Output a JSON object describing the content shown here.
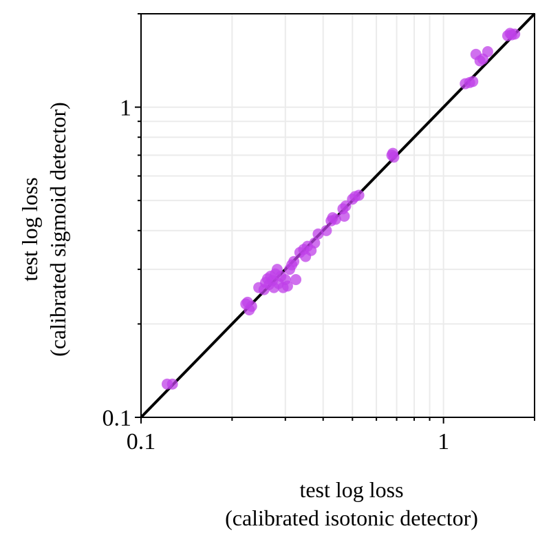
{
  "chart_data": {
    "type": "scatter",
    "title": "",
    "xlabel_lines": [
      "test log loss",
      "(calibrated isotonic detector)"
    ],
    "ylabel_lines": [
      "test log loss",
      "(calibrated sigmoid detector)"
    ],
    "x_scale": "log",
    "y_scale": "log",
    "xlim": [
      0.1,
      2.0
    ],
    "ylim": [
      0.1,
      2.0
    ],
    "x_ticks": [
      {
        "value": 0.1,
        "label": "0.1"
      },
      {
        "value": 1,
        "label": "1"
      }
    ],
    "y_ticks": [
      {
        "value": 0.1,
        "label": "0.1"
      },
      {
        "value": 1,
        "label": "1"
      }
    ],
    "grid": true,
    "reference_line": {
      "from": [
        0.1,
        0.1
      ],
      "to": [
        2.0,
        2.0
      ],
      "color": "#000000"
    },
    "point_color": "#bf40e8",
    "series": [
      {
        "points": [
          [
            0.122,
            0.128
          ],
          [
            0.127,
            0.128
          ],
          [
            0.222,
            0.232
          ],
          [
            0.225,
            0.235
          ],
          [
            0.228,
            0.222
          ],
          [
            0.232,
            0.228
          ],
          [
            0.245,
            0.262
          ],
          [
            0.255,
            0.258
          ],
          [
            0.258,
            0.272
          ],
          [
            0.262,
            0.28
          ],
          [
            0.265,
            0.268
          ],
          [
            0.268,
            0.285
          ],
          [
            0.272,
            0.276
          ],
          [
            0.275,
            0.262
          ],
          [
            0.278,
            0.29
          ],
          [
            0.282,
            0.3
          ],
          [
            0.285,
            0.27
          ],
          [
            0.29,
            0.285
          ],
          [
            0.295,
            0.262
          ],
          [
            0.3,
            0.278
          ],
          [
            0.305,
            0.265
          ],
          [
            0.31,
            0.3
          ],
          [
            0.315,
            0.31
          ],
          [
            0.32,
            0.318
          ],
          [
            0.325,
            0.278
          ],
          [
            0.335,
            0.34
          ],
          [
            0.345,
            0.348
          ],
          [
            0.35,
            0.33
          ],
          [
            0.355,
            0.356
          ],
          [
            0.365,
            0.345
          ],
          [
            0.375,
            0.365
          ],
          [
            0.385,
            0.39
          ],
          [
            0.41,
            0.4
          ],
          [
            0.425,
            0.43
          ],
          [
            0.43,
            0.44
          ],
          [
            0.44,
            0.435
          ],
          [
            0.465,
            0.47
          ],
          [
            0.47,
            0.445
          ],
          [
            0.475,
            0.48
          ],
          [
            0.5,
            0.505
          ],
          [
            0.51,
            0.515
          ],
          [
            0.525,
            0.52
          ],
          [
            0.675,
            0.7
          ],
          [
            0.68,
            0.71
          ],
          [
            0.685,
            0.69
          ],
          [
            1.18,
            1.19
          ],
          [
            1.22,
            1.2
          ],
          [
            1.25,
            1.21
          ],
          [
            1.28,
            1.48
          ],
          [
            1.32,
            1.41
          ],
          [
            1.35,
            1.43
          ],
          [
            1.4,
            1.51
          ],
          [
            1.63,
            1.7
          ],
          [
            1.66,
            1.73
          ],
          [
            1.68,
            1.71
          ],
          [
            1.72,
            1.72
          ]
        ]
      }
    ]
  }
}
